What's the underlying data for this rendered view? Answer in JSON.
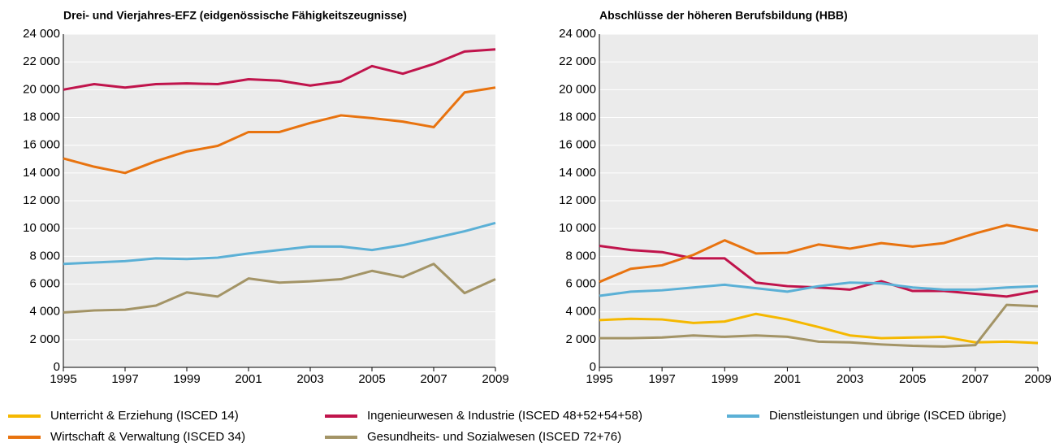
{
  "chart_data": [
    {
      "type": "line",
      "title": "Drei- und Vierjahres-EFZ (eidgenössische Fähigkeitszeugnisse)",
      "x": [
        1995,
        1996,
        1997,
        1998,
        1999,
        2000,
        2001,
        2002,
        2003,
        2004,
        2005,
        2006,
        2007,
        2008,
        2009
      ],
      "xlim": [
        1995,
        2009
      ],
      "xticks": [
        1995,
        1997,
        1999,
        2001,
        2003,
        2005,
        2007,
        2009
      ],
      "ylim": [
        0,
        24000
      ],
      "yticks": [
        0,
        {
          "value": 2000,
          "label": "2 000"
        },
        {
          "value": 4000,
          "label": "4 000"
        },
        {
          "value": 6000,
          "label": "6 000"
        },
        {
          "value": 8000,
          "label": "8 000"
        },
        {
          "value": 10000,
          "label": "10 000"
        },
        {
          "value": 12000,
          "label": "12 000"
        },
        {
          "value": 14000,
          "label": "14 000"
        },
        {
          "value": 16000,
          "label": "16 000"
        },
        {
          "value": 18000,
          "label": "18 000"
        },
        {
          "value": 20000,
          "label": "20 000"
        },
        {
          "value": 22000,
          "label": "22 000"
        },
        {
          "value": 24000,
          "label": "24 000"
        }
      ],
      "grid": true,
      "series": [
        {
          "name": "Ingenieurwesen & Industrie (ISCED 48+52+54+58)",
          "color": "#c0144c",
          "values": [
            20000,
            20400,
            20150,
            20400,
            20450,
            20400,
            20750,
            20650,
            20300,
            20600,
            21700,
            21150,
            21850,
            22750,
            22900
          ]
        },
        {
          "name": "Wirtschaft & Verwaltung (ISCED 34)",
          "color": "#e8730f",
          "values": [
            15050,
            14450,
            14000,
            14850,
            15550,
            15950,
            16950,
            16950,
            17600,
            18150,
            17950,
            17700,
            17300,
            19800,
            20150
          ]
        },
        {
          "name": "Dienstleistungen und übrige (ISCED übrige)",
          "color": "#5bb0d6",
          "values": [
            7450,
            7550,
            7650,
            7850,
            7800,
            7900,
            8200,
            8450,
            8700,
            8700,
            8450,
            8800,
            9300,
            9800,
            10400
          ]
        },
        {
          "name": "Gesundheits- und Sozialwesen (ISCED 72+76)",
          "color": "#a39466",
          "values": [
            3950,
            4100,
            4150,
            4450,
            5400,
            5100,
            6400,
            6100,
            6200,
            6350,
            6950,
            6500,
            7450,
            5350,
            6350
          ]
        }
      ]
    },
    {
      "type": "line",
      "title": "Abschlüsse der höheren Berufsbildung (HBB)",
      "x": [
        1995,
        1996,
        1997,
        1998,
        1999,
        2000,
        2001,
        2002,
        2003,
        2004,
        2005,
        2006,
        2007,
        2008,
        2009
      ],
      "xlim": [
        1995,
        2009
      ],
      "xticks": [
        1995,
        1997,
        1999,
        2001,
        2003,
        2005,
        2007,
        2009
      ],
      "ylim": [
        0,
        24000
      ],
      "yticks": [
        0,
        {
          "value": 2000,
          "label": "2 000"
        },
        {
          "value": 4000,
          "label": "4 000"
        },
        {
          "value": 6000,
          "label": "6 000"
        },
        {
          "value": 8000,
          "label": "8 000"
        },
        {
          "value": 10000,
          "label": "10 000"
        },
        {
          "value": 12000,
          "label": "12 000"
        },
        {
          "value": 14000,
          "label": "14 000"
        },
        {
          "value": 16000,
          "label": "16 000"
        },
        {
          "value": 18000,
          "label": "18 000"
        },
        {
          "value": 20000,
          "label": "20 000"
        },
        {
          "value": 22000,
          "label": "22 000"
        },
        {
          "value": 24000,
          "label": "24 000"
        }
      ],
      "grid": true,
      "series": [
        {
          "name": "Unterricht & Erziehung (ISCED 14)",
          "color": "#f5b800",
          "values": [
            3400,
            3500,
            3450,
            3200,
            3300,
            3850,
            3450,
            2900,
            2300,
            2100,
            2150,
            2200,
            1800,
            1850,
            1750
          ]
        },
        {
          "name": "Ingenieurwesen & Industrie (ISCED 48+52+54+58)",
          "color": "#c0144c",
          "values": [
            8750,
            8450,
            8300,
            7850,
            7850,
            6100,
            5850,
            5750,
            5600,
            6200,
            5500,
            5500,
            5300,
            5100,
            5500
          ]
        },
        {
          "name": "Dienstleistungen und übrige (ISCED übrige)",
          "color": "#5bb0d6",
          "values": [
            5150,
            5450,
            5550,
            5750,
            5950,
            5700,
            5450,
            5850,
            6100,
            6050,
            5750,
            5600,
            5600,
            5750,
            5850
          ]
        },
        {
          "name": "Wirtschaft & Verwaltung (ISCED 34)",
          "color": "#e8730f",
          "values": [
            6150,
            7100,
            7350,
            8100,
            9150,
            8200,
            8250,
            8850,
            8550,
            8950,
            8700,
            8950,
            9650,
            10250,
            9850
          ]
        },
        {
          "name": "Gesundheits- und Sozialwesen (ISCED 72+76)",
          "color": "#a39466",
          "values": [
            2100,
            2100,
            2150,
            2300,
            2200,
            2300,
            2200,
            1850,
            1800,
            1650,
            1550,
            1500,
            1600,
            4500,
            4400
          ]
        }
      ]
    }
  ]
}
